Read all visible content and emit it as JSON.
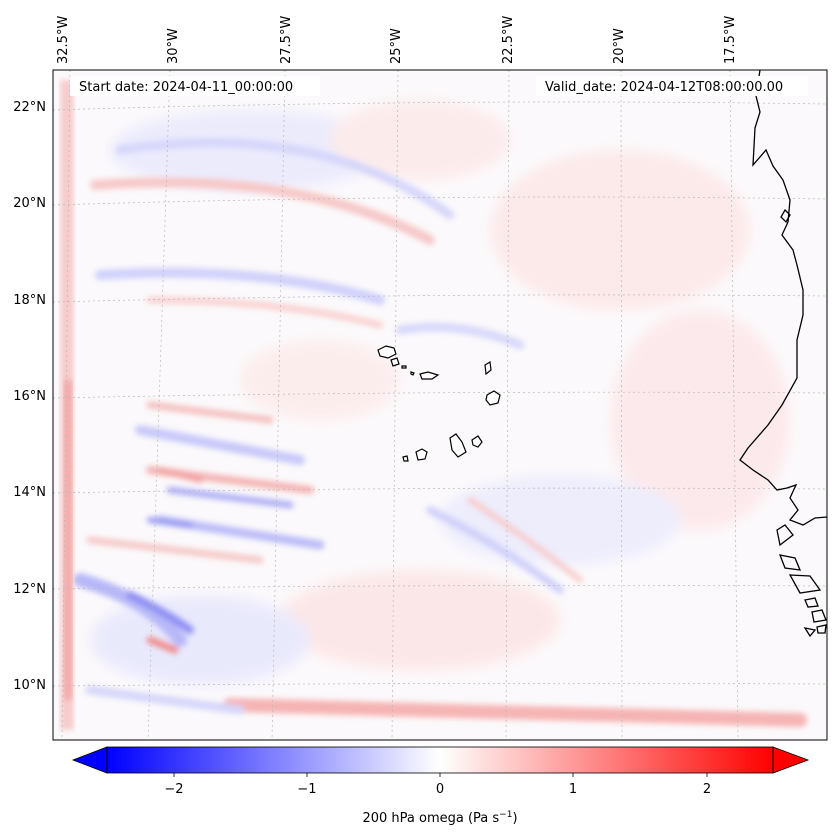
{
  "map": {
    "start_date_label": "Start date: 2024-04-11_00:00:00",
    "valid_date_label": "Valid_date: 2024-04-12T08:00:00.00",
    "lon_labels": [
      "32.5°W",
      "30°W",
      "27.5°W",
      "25°W",
      "22.5°W",
      "20°W",
      "17.5°W"
    ],
    "lat_labels": [
      "22°N",
      "20°N",
      "18°N",
      "16°N",
      "14°N",
      "12°N",
      "10°N"
    ]
  },
  "colorbar": {
    "label_main": "200 hPa omega (Pa s",
    "label_exp": "−1",
    "label_close": ")",
    "ticks": [
      "−2",
      "−1",
      "0",
      "1",
      "2"
    ],
    "min_color": "#0000ff",
    "mid_color": "#ffffff",
    "max_color": "#ff0000"
  },
  "chart_data": {
    "type": "heatmap",
    "variable": "200 hPa omega",
    "units": "Pa s^-1",
    "colormap": "bwr",
    "color_range": [
      -2.7,
      2.7
    ],
    "colorbar_ticks": [
      -2,
      -1,
      0,
      1,
      2
    ],
    "lon_ticks": [
      -32.5,
      -30,
      -27.5,
      -25,
      -22.5,
      -20,
      -17.5
    ],
    "lat_ticks": [
      22,
      20,
      18,
      16,
      14,
      12,
      10
    ],
    "title_left": "Start date: 2024-04-11_00:00:00",
    "title_right": "Valid_date: 2024-04-12T08:00:00.00"
  }
}
